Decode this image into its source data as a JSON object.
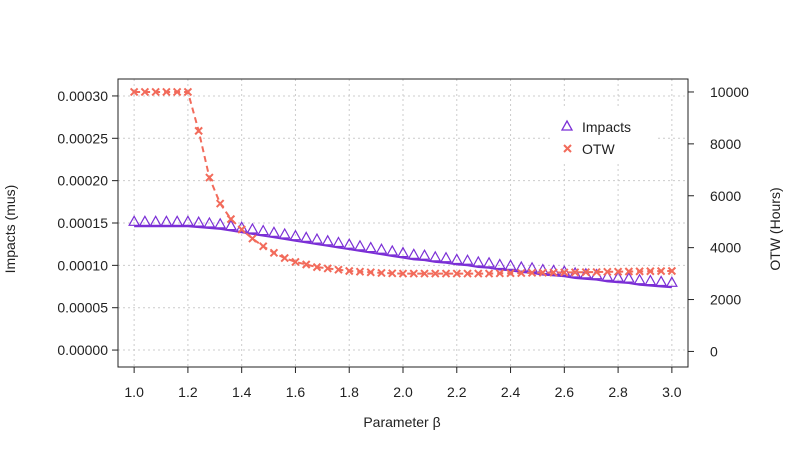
{
  "chart_data": {
    "type": "scatter",
    "xlabel": "Parameter β",
    "ylabel_left": "Impacts (mus)",
    "ylabel_right": "OTW (Hours)",
    "x": [
      1.0,
      1.04,
      1.08,
      1.12,
      1.16,
      1.2,
      1.24,
      1.28,
      1.32,
      1.36,
      1.4,
      1.44,
      1.48,
      1.52,
      1.56,
      1.6,
      1.64,
      1.68,
      1.72,
      1.76,
      1.8,
      1.84,
      1.88,
      1.92,
      1.96,
      2.0,
      2.04,
      2.08,
      2.12,
      2.16,
      2.2,
      2.24,
      2.28,
      2.32,
      2.36,
      2.4,
      2.44,
      2.48,
      2.52,
      2.56,
      2.6,
      2.64,
      2.68,
      2.72,
      2.76,
      2.8,
      2.84,
      2.88,
      2.92,
      2.96,
      3.0
    ],
    "xlim": [
      0.94,
      3.06
    ],
    "xticks": [
      "1.0",
      "1.2",
      "1.4",
      "1.6",
      "1.8",
      "2.0",
      "2.2",
      "2.4",
      "2.6",
      "2.8",
      "3.0"
    ],
    "ylim_left": [
      -2e-05,
      0.00032
    ],
    "yticks_left": [
      "0.00000",
      "0.00005",
      "0.00010",
      "0.00015",
      "0.00020",
      "0.00025",
      "0.00030"
    ],
    "ylim_right": [
      -600,
      10500
    ],
    "yticks_right": [
      "0",
      "2000",
      "4000",
      "6000",
      "8000",
      "10000"
    ],
    "grid": true,
    "legend_position": "top-right",
    "series": [
      {
        "name": "Impacts",
        "axis": "left",
        "marker": "triangle",
        "color": "#7b2fd6",
        "values": [
          0.000152,
          0.000152,
          0.000152,
          0.000152,
          0.000152,
          0.000152,
          0.000151,
          0.00015,
          0.000149,
          0.000147,
          0.000145,
          0.000143,
          0.000141,
          0.000139,
          0.000137,
          0.000135,
          0.000133,
          0.000131,
          0.000129,
          0.000127,
          0.000125,
          0.000123,
          0.000121,
          0.000119,
          0.000117,
          0.000115,
          0.000113,
          0.000112,
          0.00011,
          0.000109,
          0.000107,
          0.000106,
          0.000104,
          0.000103,
          0.000101,
          0.0001,
          9.8e-05,
          9.7e-05,
          9.5e-05,
          9.4e-05,
          9.3e-05,
          9.1e-05,
          9e-05,
          8.9e-05,
          8.7e-05,
          8.6e-05,
          8.5e-05,
          8.3e-05,
          8.2e-05,
          8.1e-05,
          8e-05
        ]
      },
      {
        "name": "OTW",
        "axis": "right",
        "marker": "cross",
        "color": "#f26b5b",
        "values": [
          10000,
          10000,
          10000,
          10000,
          10000,
          10000,
          8500,
          6700,
          5700,
          5100,
          4700,
          4350,
          4050,
          3800,
          3600,
          3450,
          3350,
          3250,
          3200,
          3150,
          3100,
          3075,
          3050,
          3025,
          3010,
          3000,
          3000,
          3000,
          3000,
          3000,
          3000,
          3000,
          3000,
          3000,
          3010,
          3015,
          3020,
          3030,
          3035,
          3040,
          3045,
          3050,
          3055,
          3060,
          3070,
          3075,
          3080,
          3085,
          3090,
          3095,
          3100
        ]
      }
    ]
  }
}
